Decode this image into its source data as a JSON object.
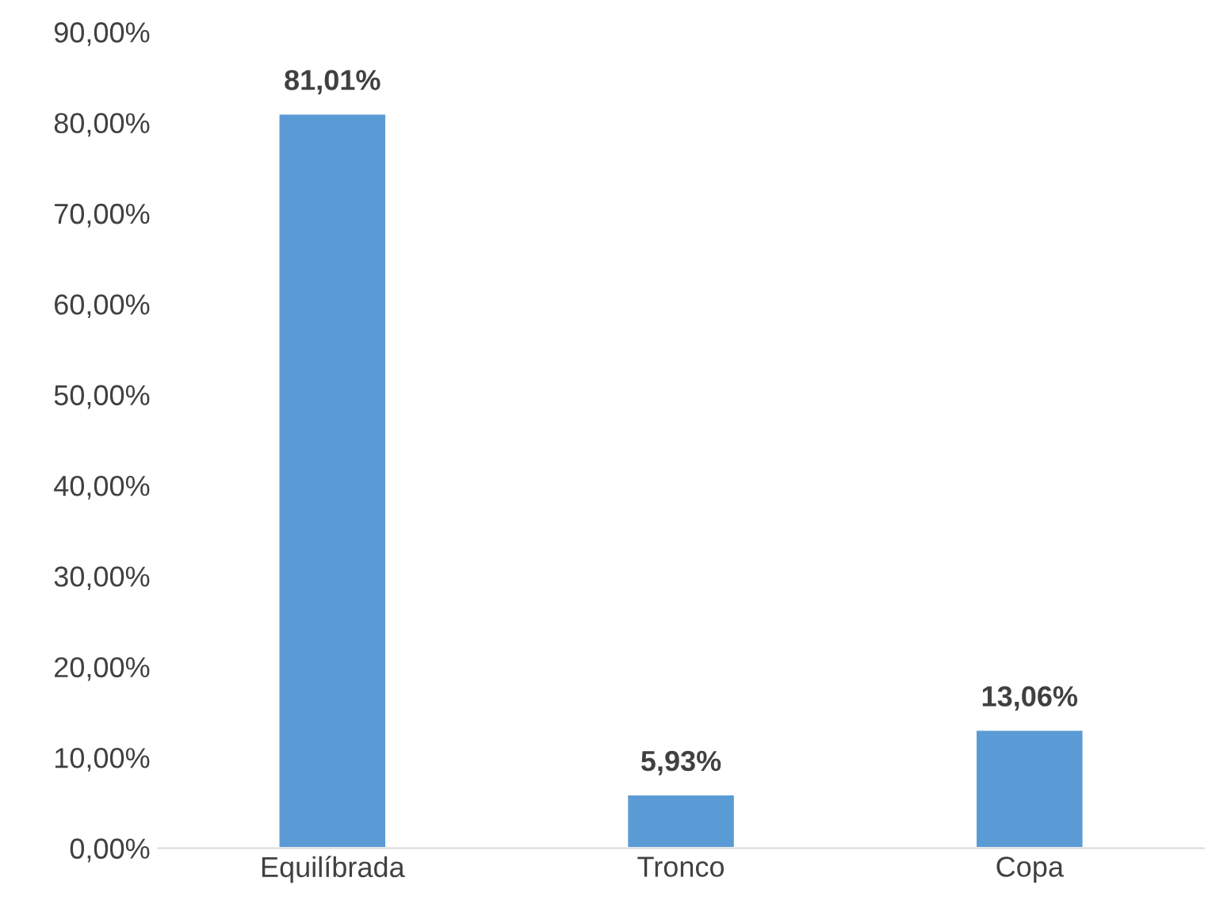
{
  "chart_data": {
    "type": "bar",
    "categories": [
      "Equilíbrada",
      "Tronco",
      "Copa"
    ],
    "values": [
      81.01,
      5.93,
      13.06
    ],
    "value_labels": [
      "81,01%",
      "5,93%",
      "13,06%"
    ],
    "color": "#5b9bd5",
    "ylim": [
      0,
      90
    ],
    "yticks": [
      {
        "value": 0,
        "label": "0,00%"
      },
      {
        "value": 10,
        "label": "10,00%"
      },
      {
        "value": 20,
        "label": "20,00%"
      },
      {
        "value": 30,
        "label": "30,00%"
      },
      {
        "value": 40,
        "label": "40,00%"
      },
      {
        "value": 50,
        "label": "50,00%"
      },
      {
        "value": 60,
        "label": "60,00%"
      },
      {
        "value": 70,
        "label": "70,00%"
      },
      {
        "value": 80,
        "label": "80,00%"
      },
      {
        "value": 90,
        "label": "90,00%"
      }
    ],
    "grid": false,
    "legend": false
  }
}
